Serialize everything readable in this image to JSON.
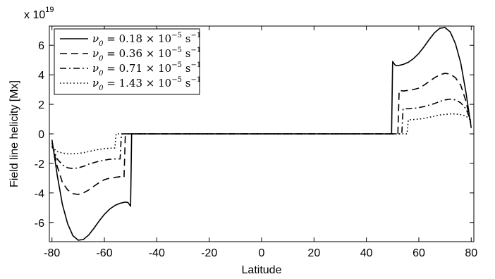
{
  "chart_data": {
    "type": "line",
    "xlabel": "Latitude",
    "ylabel": "Field line helicity [Mx]",
    "multiplier": {
      "prefix": "x 10",
      "exponent": "19"
    },
    "xlim": [
      -81,
      81
    ],
    "ylim": [
      -7.3,
      7.3
    ],
    "xticks": [
      -80,
      -60,
      -40,
      -20,
      0,
      20,
      40,
      60,
      80
    ],
    "yticks": [
      -6,
      -4,
      -2,
      0,
      2,
      4,
      6
    ],
    "grid": false,
    "legend_position": "top-left",
    "series": [
      {
        "name": "ν0 = 0.18 × 10−5 s−1",
        "dash": "solid",
        "color": "#000000",
        "points": [
          [
            -80,
            -0.4
          ],
          [
            -78,
            -2.8
          ],
          [
            -76,
            -4.8
          ],
          [
            -74,
            -6.1
          ],
          [
            -72,
            -6.9
          ],
          [
            -70,
            -7.2
          ],
          [
            -68,
            -7.15
          ],
          [
            -66,
            -6.85
          ],
          [
            -64,
            -6.4
          ],
          [
            -62,
            -5.9
          ],
          [
            -60,
            -5.45
          ],
          [
            -58,
            -5.1
          ],
          [
            -56,
            -4.85
          ],
          [
            -54,
            -4.7
          ],
          [
            -52,
            -4.62
          ],
          [
            -51,
            -4.65
          ],
          [
            -50,
            -4.9
          ],
          [
            -49.6,
            0
          ],
          [
            49.6,
            0
          ],
          [
            50,
            4.9
          ],
          [
            51,
            4.65
          ],
          [
            52,
            4.62
          ],
          [
            54,
            4.7
          ],
          [
            56,
            4.85
          ],
          [
            58,
            5.1
          ],
          [
            60,
            5.45
          ],
          [
            62,
            5.9
          ],
          [
            64,
            6.4
          ],
          [
            66,
            6.85
          ],
          [
            68,
            7.15
          ],
          [
            70,
            7.2
          ],
          [
            72,
            6.9
          ],
          [
            74,
            6.1
          ],
          [
            76,
            4.8
          ],
          [
            78,
            2.8
          ],
          [
            80,
            0.4
          ]
        ]
      },
      {
        "name": "ν0 = 0.36 × 10−5 s−1",
        "dash": "dashed",
        "color": "#000000",
        "points": [
          [
            -80,
            -0.6
          ],
          [
            -78,
            -2.2
          ],
          [
            -76,
            -3.3
          ],
          [
            -74,
            -3.8
          ],
          [
            -72,
            -4.05
          ],
          [
            -70,
            -4.1
          ],
          [
            -68,
            -4.0
          ],
          [
            -66,
            -3.8
          ],
          [
            -64,
            -3.55
          ],
          [
            -62,
            -3.3
          ],
          [
            -60,
            -3.1
          ],
          [
            -58,
            -3.0
          ],
          [
            -56,
            -2.95
          ],
          [
            -54,
            -2.9
          ],
          [
            -52.5,
            -2.95
          ],
          [
            -52,
            0
          ],
          [
            52,
            0
          ],
          [
            52.5,
            2.95
          ],
          [
            54,
            2.9
          ],
          [
            56,
            2.95
          ],
          [
            58,
            3.0
          ],
          [
            60,
            3.1
          ],
          [
            62,
            3.3
          ],
          [
            64,
            3.55
          ],
          [
            66,
            3.8
          ],
          [
            68,
            4.0
          ],
          [
            70,
            4.1
          ],
          [
            72,
            4.05
          ],
          [
            74,
            3.8
          ],
          [
            76,
            3.3
          ],
          [
            78,
            2.2
          ],
          [
            80,
            0.6
          ]
        ]
      },
      {
        "name": "ν0 = 0.71 × 10−5 s−1",
        "dash": "dashdot",
        "color": "#000000",
        "points": [
          [
            -80,
            -0.8
          ],
          [
            -78,
            -1.7
          ],
          [
            -76,
            -2.1
          ],
          [
            -74,
            -2.3
          ],
          [
            -72,
            -2.35
          ],
          [
            -70,
            -2.3
          ],
          [
            -68,
            -2.2
          ],
          [
            -66,
            -2.05
          ],
          [
            -64,
            -1.95
          ],
          [
            -62,
            -1.85
          ],
          [
            -60,
            -1.78
          ],
          [
            -58,
            -1.72
          ],
          [
            -56,
            -1.7
          ],
          [
            -54,
            -1.7
          ],
          [
            -53.5,
            0
          ],
          [
            53.5,
            0
          ],
          [
            54,
            1.7
          ],
          [
            56,
            1.7
          ],
          [
            58,
            1.72
          ],
          [
            60,
            1.78
          ],
          [
            62,
            1.85
          ],
          [
            64,
            1.95
          ],
          [
            66,
            2.05
          ],
          [
            68,
            2.2
          ],
          [
            70,
            2.3
          ],
          [
            72,
            2.35
          ],
          [
            74,
            2.3
          ],
          [
            76,
            2.1
          ],
          [
            78,
            1.7
          ],
          [
            80,
            0.8
          ]
        ]
      },
      {
        "name": "ν0 = 1.43 × 10−5 s−1",
        "dash": "dotted",
        "color": "#000000",
        "points": [
          [
            -80,
            -0.9
          ],
          [
            -78,
            -1.2
          ],
          [
            -76,
            -1.3
          ],
          [
            -74,
            -1.35
          ],
          [
            -72,
            -1.35
          ],
          [
            -70,
            -1.32
          ],
          [
            -68,
            -1.28
          ],
          [
            -66,
            -1.2
          ],
          [
            -64,
            -1.12
          ],
          [
            -62,
            -1.05
          ],
          [
            -60,
            -1.0
          ],
          [
            -58,
            -0.97
          ],
          [
            -56,
            -0.95
          ],
          [
            -55.5,
            0
          ],
          [
            55.5,
            0
          ],
          [
            56,
            0.95
          ],
          [
            58,
            0.97
          ],
          [
            60,
            1.0
          ],
          [
            62,
            1.05
          ],
          [
            64,
            1.12
          ],
          [
            66,
            1.2
          ],
          [
            68,
            1.28
          ],
          [
            70,
            1.32
          ],
          [
            72,
            1.35
          ],
          [
            74,
            1.35
          ],
          [
            76,
            1.3
          ],
          [
            78,
            1.2
          ],
          [
            80,
            0.9
          ]
        ]
      }
    ],
    "legend": [
      {
        "nu": "ν",
        "sub": "0",
        "eq": " = ",
        "coef": "0.18",
        "times": " × 10",
        "exp": "−5",
        "unit": " s",
        "unit_exp": "−1"
      },
      {
        "nu": "ν",
        "sub": "0",
        "eq": " = ",
        "coef": "0.36",
        "times": " × 10",
        "exp": "−5",
        "unit": " s",
        "unit_exp": "−1"
      },
      {
        "nu": "ν",
        "sub": "0",
        "eq": " = ",
        "coef": "0.71",
        "times": " × 10",
        "exp": "−5",
        "unit": " s",
        "unit_exp": "−1"
      },
      {
        "nu": "ν",
        "sub": "0",
        "eq": " = ",
        "coef": "1.43",
        "times": " × 10",
        "exp": "−5",
        "unit": " s",
        "unit_exp": "−1"
      }
    ]
  }
}
